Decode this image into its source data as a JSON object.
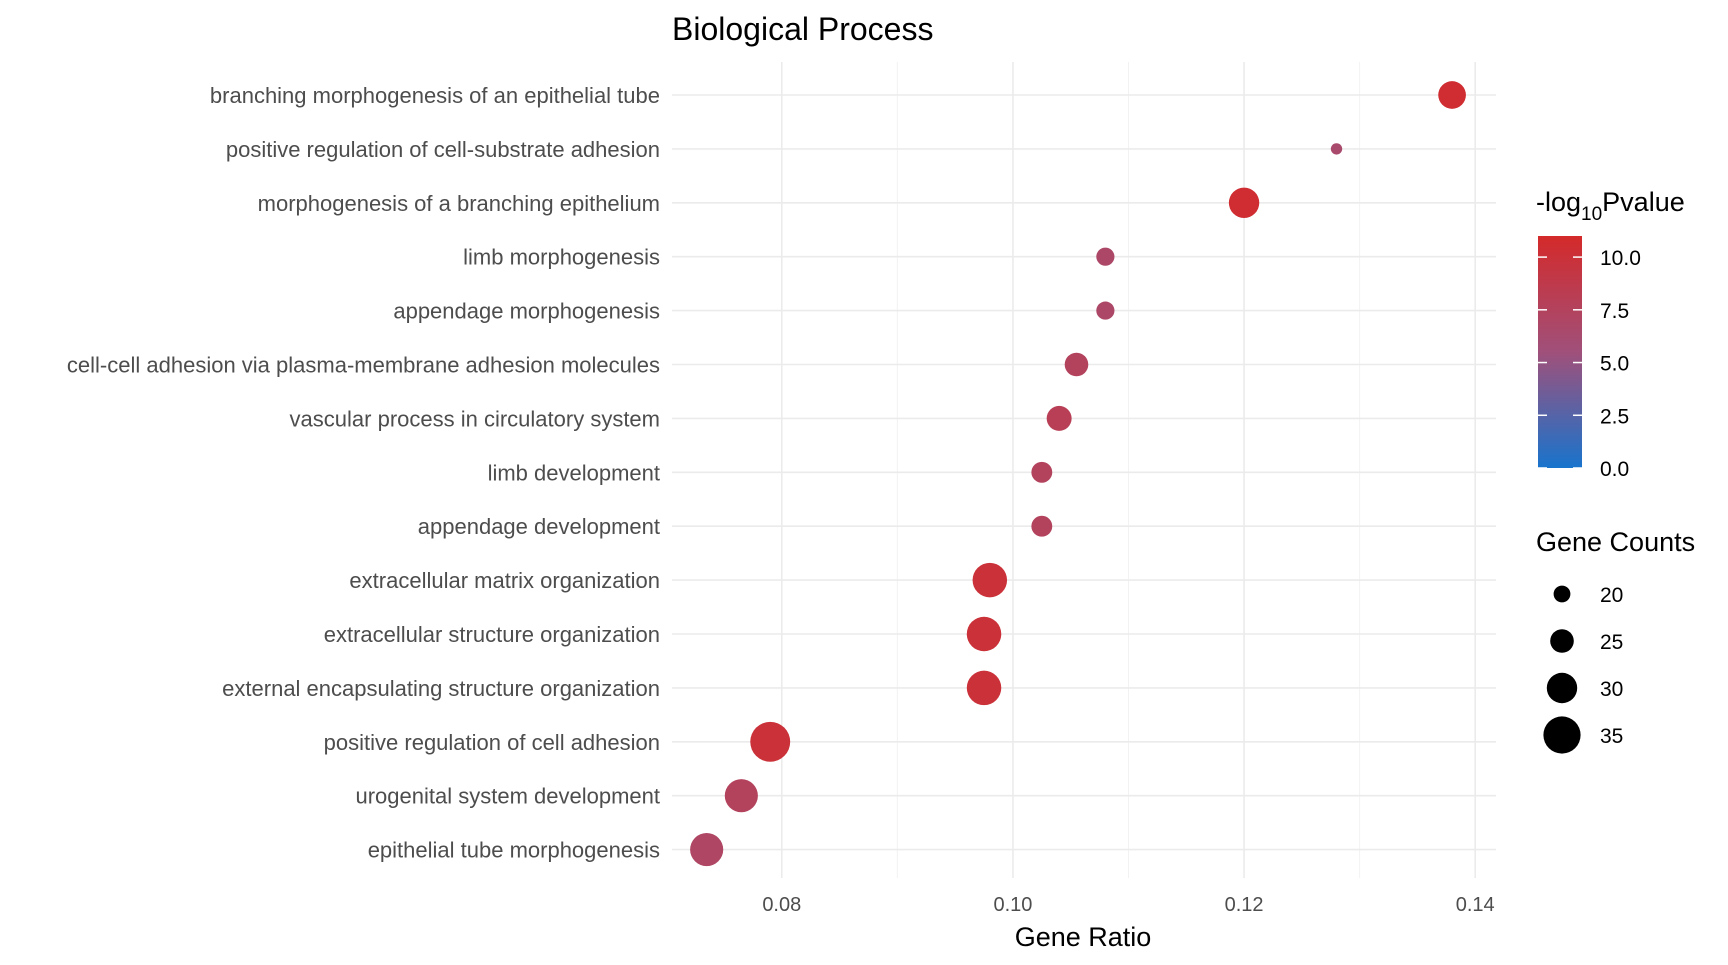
{
  "chart_data": {
    "type": "scatter",
    "title": "Biological Process",
    "xlabel": "Gene Ratio",
    "xlim": [
      0.0705,
      0.1418
    ],
    "xticks": [
      "0.08",
      "0.10",
      "0.12",
      "0.14"
    ],
    "xtick_values": [
      0.08,
      0.1,
      0.12,
      0.14
    ],
    "grid": true,
    "categories": [
      "branching morphogenesis of an epithelial tube",
      "positive regulation of cell-substrate adhesion",
      "morphogenesis of a branching epithelium",
      "limb morphogenesis",
      "appendage morphogenesis",
      "cell-cell adhesion via plasma-membrane adhesion molecules",
      "vascular process in circulatory system",
      "limb development",
      "appendage development",
      "extracellular matrix organization",
      "extracellular structure organization",
      "external encapsulating structure organization",
      "positive regulation of cell adhesion",
      "urogenital system development",
      "epithelial tube morphogenesis"
    ],
    "points": [
      {
        "term": "branching morphogenesis of an epithelial tube",
        "gene_ratio": 0.138,
        "neg_log10_p": 10.5,
        "gene_count": 28
      },
      {
        "term": "positive regulation of cell-substrate adhesion",
        "gene_ratio": 0.128,
        "neg_log10_p": 6.5,
        "gene_count": 16
      },
      {
        "term": "morphogenesis of a branching epithelium",
        "gene_ratio": 0.12,
        "neg_log10_p": 10.5,
        "gene_count": 30
      },
      {
        "term": "limb morphogenesis",
        "gene_ratio": 0.108,
        "neg_log10_p": 6.8,
        "gene_count": 21
      },
      {
        "term": "appendage morphogenesis",
        "gene_ratio": 0.108,
        "neg_log10_p": 6.8,
        "gene_count": 21
      },
      {
        "term": "cell-cell adhesion via plasma-membrane adhesion molecules",
        "gene_ratio": 0.1055,
        "neg_log10_p": 7.5,
        "gene_count": 25
      },
      {
        "term": "vascular process in circulatory system",
        "gene_ratio": 0.104,
        "neg_log10_p": 8.0,
        "gene_count": 26
      },
      {
        "term": "limb development",
        "gene_ratio": 0.1025,
        "neg_log10_p": 7.5,
        "gene_count": 23
      },
      {
        "term": "appendage development",
        "gene_ratio": 0.1025,
        "neg_log10_p": 7.5,
        "gene_count": 23
      },
      {
        "term": "extracellular matrix organization",
        "gene_ratio": 0.098,
        "neg_log10_p": 10.0,
        "gene_count": 33
      },
      {
        "term": "extracellular structure organization",
        "gene_ratio": 0.0975,
        "neg_log10_p": 10.0,
        "gene_count": 33
      },
      {
        "term": "external encapsulating structure organization",
        "gene_ratio": 0.0975,
        "neg_log10_p": 10.0,
        "gene_count": 33
      },
      {
        "term": "positive regulation of cell adhesion",
        "gene_ratio": 0.079,
        "neg_log10_p": 10.0,
        "gene_count": 37
      },
      {
        "term": "urogenital system development",
        "gene_ratio": 0.0765,
        "neg_log10_p": 7.5,
        "gene_count": 32
      },
      {
        "term": "epithelial tube morphogenesis",
        "gene_ratio": 0.0735,
        "neg_log10_p": 7.0,
        "gene_count": 32
      }
    ],
    "color_legend": {
      "title_prefix": "-log",
      "title_sub": "10",
      "title_suffix": "Pvalue",
      "ticks": [
        "0.0",
        "2.5",
        "5.0",
        "7.5",
        "10.0"
      ],
      "tick_values": [
        0.0,
        2.5,
        5.0,
        7.5,
        10.0
      ],
      "range": [
        0.0,
        11.0
      ],
      "low_color": "#1874cd",
      "mid_color": "#a0507a",
      "high_color": "#d42a2a"
    },
    "size_legend": {
      "title": "Gene Counts",
      "labels": [
        "20",
        "25",
        "30",
        "35"
      ],
      "values": [
        20,
        25,
        30,
        35
      ]
    },
    "legend_placement": "right"
  }
}
